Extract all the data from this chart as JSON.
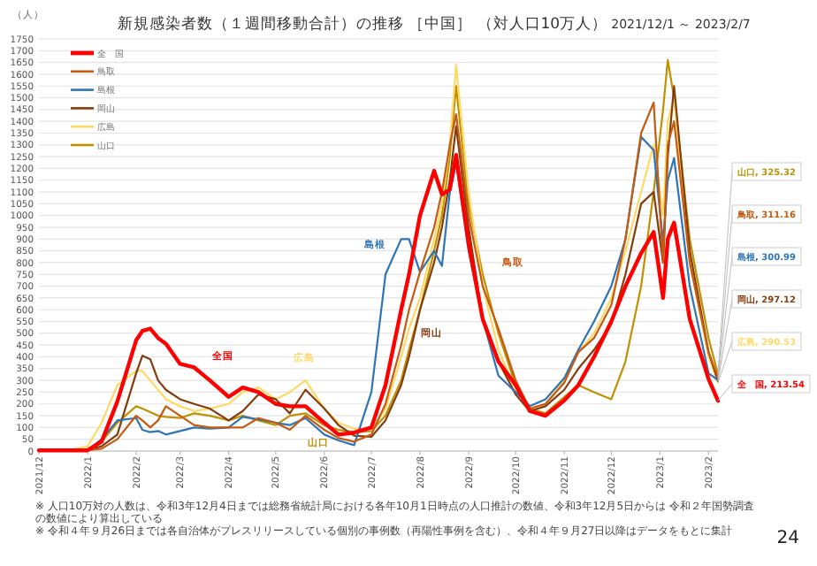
{
  "chart_data": {
    "type": "line",
    "title": "新規感染者数（１週間移動合計）の推移 ［中国］ （対人口10万人）",
    "subtitle": "2021/12/1 ～ 2023/2/7",
    "ylabel": "（人）",
    "x": [
      "2021-12-01",
      "2021-12-10",
      "2021-12-20",
      "2022-01-01",
      "2022-01-10",
      "2022-01-20",
      "2022-02-01",
      "2022-02-05",
      "2022-02-10",
      "2022-02-15",
      "2022-02-20",
      "2022-03-01",
      "2022-03-10",
      "2022-03-20",
      "2022-04-01",
      "2022-04-10",
      "2022-04-20",
      "2022-05-01",
      "2022-05-10",
      "2022-05-20",
      "2022-06-01",
      "2022-06-10",
      "2022-06-20",
      "2022-07-01",
      "2022-07-10",
      "2022-07-20",
      "2022-07-25",
      "2022-08-01",
      "2022-08-10",
      "2022-08-15",
      "2022-08-20",
      "2022-08-24",
      "2022-09-01",
      "2022-09-10",
      "2022-09-20",
      "2022-10-01",
      "2022-10-10",
      "2022-10-20",
      "2022-11-01",
      "2022-11-10",
      "2022-11-20",
      "2022-12-01",
      "2022-12-10",
      "2022-12-20",
      "2022-12-28",
      "2023-01-03",
      "2023-01-06",
      "2023-01-10",
      "2023-01-20",
      "2023-02-01",
      "2023-02-07"
    ],
    "xlim": [
      "2021-12-01",
      "2023-02-07"
    ],
    "ylim": [
      0,
      1750
    ],
    "yticks": [
      0,
      50,
      100,
      150,
      200,
      250,
      300,
      350,
      400,
      450,
      500,
      550,
      600,
      650,
      700,
      750,
      800,
      850,
      900,
      950,
      1000,
      1050,
      1100,
      1150,
      1200,
      1250,
      1300,
      1350,
      1400,
      1450,
      1500,
      1550,
      1600,
      1650,
      1700,
      1750
    ],
    "xticks": [
      {
        "value": "2021-12-01",
        "label": "2021/12"
      },
      {
        "value": "2022-01-01",
        "label": "2022/1"
      },
      {
        "value": "2022-02-01",
        "label": "2022/2"
      },
      {
        "value": "2022-03-01",
        "label": "2022/3"
      },
      {
        "value": "2022-04-01",
        "label": "2022/4"
      },
      {
        "value": "2022-05-01",
        "label": "2022/5"
      },
      {
        "value": "2022-06-01",
        "label": "2022/6"
      },
      {
        "value": "2022-07-01",
        "label": "2022/7"
      },
      {
        "value": "2022-08-01",
        "label": "2022/8"
      },
      {
        "value": "2022-09-01",
        "label": "2022/9"
      },
      {
        "value": "2022-10-01",
        "label": "2022/10"
      },
      {
        "value": "2022-11-01",
        "label": "2022/11"
      },
      {
        "value": "2022-12-01",
        "label": "2022/12"
      },
      {
        "value": "2023-01-01",
        "label": "2023/1"
      },
      {
        "value": "2023-02-01",
        "label": "2023/2"
      }
    ],
    "grid": "y",
    "legend": "top left",
    "marker": "none",
    "line_style": "solid",
    "series": [
      {
        "name": "全　国",
        "color": "#ff0000",
        "values": [
          3,
          3,
          3,
          3,
          40,
          210,
          470,
          510,
          520,
          480,
          455,
          370,
          355,
          300,
          230,
          270,
          250,
          200,
          190,
          190,
          120,
          70,
          78,
          100,
          280,
          600,
          750,
          1000,
          1190,
          1090,
          1110,
          1257,
          880,
          560,
          380,
          280,
          170,
          150,
          215,
          280,
          400,
          550,
          700,
          840,
          930,
          650,
          900,
          970,
          560,
          306,
          213.54
        ]
      },
      {
        "name": "鳥取",
        "color": "#c55a11",
        "values": [
          null,
          null,
          3,
          3,
          10,
          50,
          150,
          130,
          100,
          130,
          190,
          150,
          110,
          100,
          100,
          100,
          140,
          120,
          90,
          150,
          90,
          55,
          40,
          70,
          200,
          450,
          600,
          760,
          950,
          1100,
          1300,
          1430,
          1000,
          700,
          520,
          300,
          180,
          200,
          290,
          420,
          480,
          620,
          900,
          1350,
          1480,
          800,
          1300,
          1400,
          800,
          420,
          311.16
        ]
      },
      {
        "name": "島根",
        "color": "#2e75b6",
        "values": [
          null,
          null,
          3,
          3,
          50,
          130,
          140,
          90,
          80,
          85,
          70,
          85,
          100,
          95,
          100,
          145,
          135,
          120,
          110,
          140,
          70,
          45,
          25,
          250,
          750,
          900,
          900,
          760,
          850,
          786,
          1100,
          1223,
          850,
          560,
          320,
          250,
          191,
          220,
          310,
          430,
          550,
          700,
          900,
          1334,
          1278,
          887,
          1150,
          1244,
          700,
          330,
          300.99
        ]
      },
      {
        "name": "岡山",
        "color": "#843c0c",
        "values": [
          null,
          null,
          3,
          3,
          20,
          70,
          330,
          405,
          390,
          300,
          260,
          220,
          200,
          180,
          130,
          170,
          240,
          220,
          160,
          260,
          180,
          110,
          65,
          60,
          130,
          280,
          400,
          600,
          800,
          950,
          1150,
          1380,
          950,
          560,
          380,
          240,
          170,
          190,
          260,
          350,
          430,
          540,
          750,
          1050,
          1100,
          800,
          1250,
          1550,
          850,
          420,
          297.12
        ]
      },
      {
        "name": "広島",
        "color": "#ffd966",
        "values": [
          3,
          3,
          3,
          20,
          120,
          280,
          340,
          340,
          300,
          260,
          220,
          190,
          170,
          180,
          200,
          250,
          270,
          220,
          250,
          300,
          180,
          120,
          95,
          90,
          180,
          400,
          520,
          650,
          900,
          1050,
          1300,
          1640,
          1100,
          700,
          430,
          260,
          180,
          200,
          300,
          420,
          500,
          650,
          850,
          1100,
          1300,
          1000,
          1400,
          1500,
          800,
          400,
          290.53
        ]
      },
      {
        "name": "山口",
        "color": "#bf9000",
        "values": [
          null,
          null,
          null,
          3,
          40,
          120,
          190,
          180,
          165,
          150,
          145,
          140,
          160,
          150,
          130,
          150,
          130,
          110,
          150,
          160,
          110,
          90,
          80,
          85,
          150,
          300,
          430,
          600,
          850,
          1000,
          1250,
          1550,
          1050,
          750,
          500,
          280,
          180,
          160,
          230,
          280,
          250,
          220,
          380,
          700,
          1100,
          1450,
          1660,
          1500,
          900,
          480,
          325.32
        ]
      }
    ],
    "annotations": [
      "全国",
      "鳥取",
      "島根",
      "岡山",
      "広島",
      "山口",
      {
        "text": "山口, 325.32",
        "x": "2023-02-07",
        "y": 325.32
      },
      {
        "text": "鳥取, 311.16",
        "x": "2023-02-07",
        "y": 311.16
      },
      {
        "text": "島根, 300.99",
        "x": "2023-02-07",
        "y": 300.99
      },
      {
        "text": "岡山, 297.12",
        "x": "2023-02-07",
        "y": 297.12
      },
      {
        "text": "広島, 290.53",
        "x": "2023-02-07",
        "y": 290.53
      },
      {
        "text": "全　国, 213.54",
        "x": "2023-02-07",
        "y": 213.54
      },
      "※ 人口10万対の人数は、令和3年12月4日までは総務省統計局における各年10月1日時点の人口推計の数値、令和3年12月5日からは 令和２年国勢調査の数値により算出している",
      "※ 令和４年９月26日までは各自治体がプレスリリースしている個別の事例数（再陽性事例を含む）、令和４年９月27日以降はデータをもとに集計",
      "24"
    ]
  }
}
